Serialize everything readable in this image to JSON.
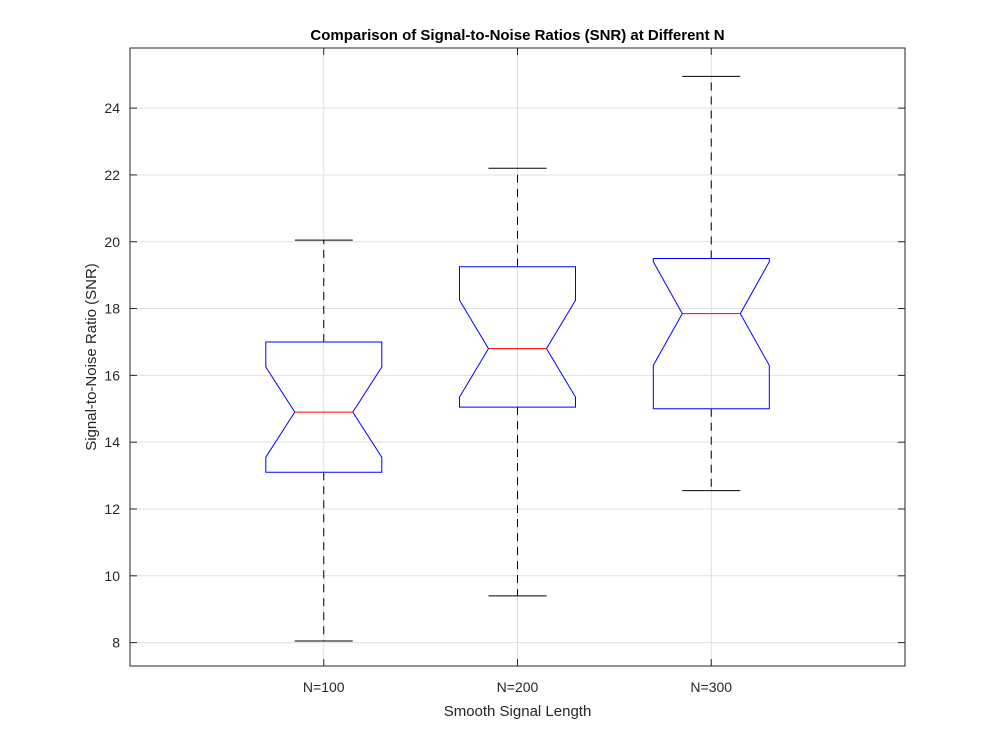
{
  "chart_data": {
    "type": "boxplot",
    "title": "Comparison of Signal-to-Noise Ratios (SNR) at Different N",
    "xlabel": "Smooth Signal Length",
    "ylabel": "Signal-to-Noise Ratio (SNR)",
    "ylim": [
      7.3,
      25.8
    ],
    "yticks": [
      8,
      10,
      12,
      14,
      16,
      18,
      20,
      22,
      24
    ],
    "grid": true,
    "notched": true,
    "categories": [
      "N=100",
      "N=200",
      "N=300"
    ],
    "boxes": [
      {
        "label": "N=100",
        "whisker_low": 8.05,
        "q1": 13.1,
        "notch_low": 13.55,
        "median": 14.9,
        "notch_high": 16.25,
        "q3": 17.0,
        "whisker_high": 20.05
      },
      {
        "label": "N=200",
        "whisker_low": 9.4,
        "q1": 15.05,
        "notch_low": 15.35,
        "median": 16.8,
        "notch_high": 18.25,
        "q3": 19.25,
        "whisker_high": 22.2
      },
      {
        "label": "N=300",
        "whisker_low": 12.55,
        "q1": 15.0,
        "notch_low": 16.3,
        "median": 17.85,
        "notch_high": 19.4,
        "q3": 19.5,
        "whisker_high": 24.95
      }
    ],
    "colors": {
      "box": "#0000ff",
      "median": "#ff0000",
      "whisker": "#000000",
      "grid": "#dfdfdf",
      "axis": "#262626"
    }
  }
}
